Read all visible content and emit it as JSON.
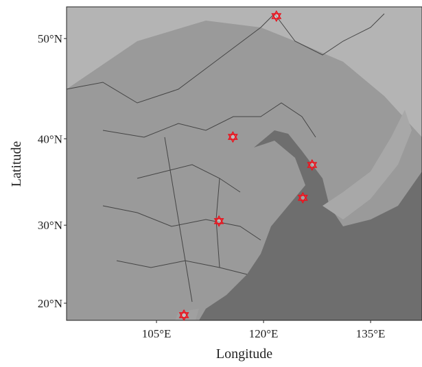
{
  "chart_data": {
    "type": "map",
    "projection": "mercator",
    "xlabel": "Longitude",
    "ylabel": "Latitude",
    "xlim": [
      92.4,
      142.2
    ],
    "ylim": [
      17.7,
      52.8
    ],
    "xticks": [
      {
        "value": 105,
        "label": "105°E"
      },
      {
        "value": 120,
        "label": "120°E"
      },
      {
        "value": 135,
        "label": "135°E"
      }
    ],
    "yticks": [
      {
        "value": 20,
        "label": "20°N"
      },
      {
        "value": 30,
        "label": "30°N"
      },
      {
        "value": 40,
        "label": "40°N"
      },
      {
        "value": 50,
        "label": "50°N"
      }
    ],
    "x": [
      121.8,
      115.7,
      126.8,
      125.5,
      113.75,
      108.85
    ],
    "y": [
      52.0,
      40.2,
      37.1,
      33.3,
      30.5,
      18.4
    ],
    "marker_color": "#e8141e"
  }
}
